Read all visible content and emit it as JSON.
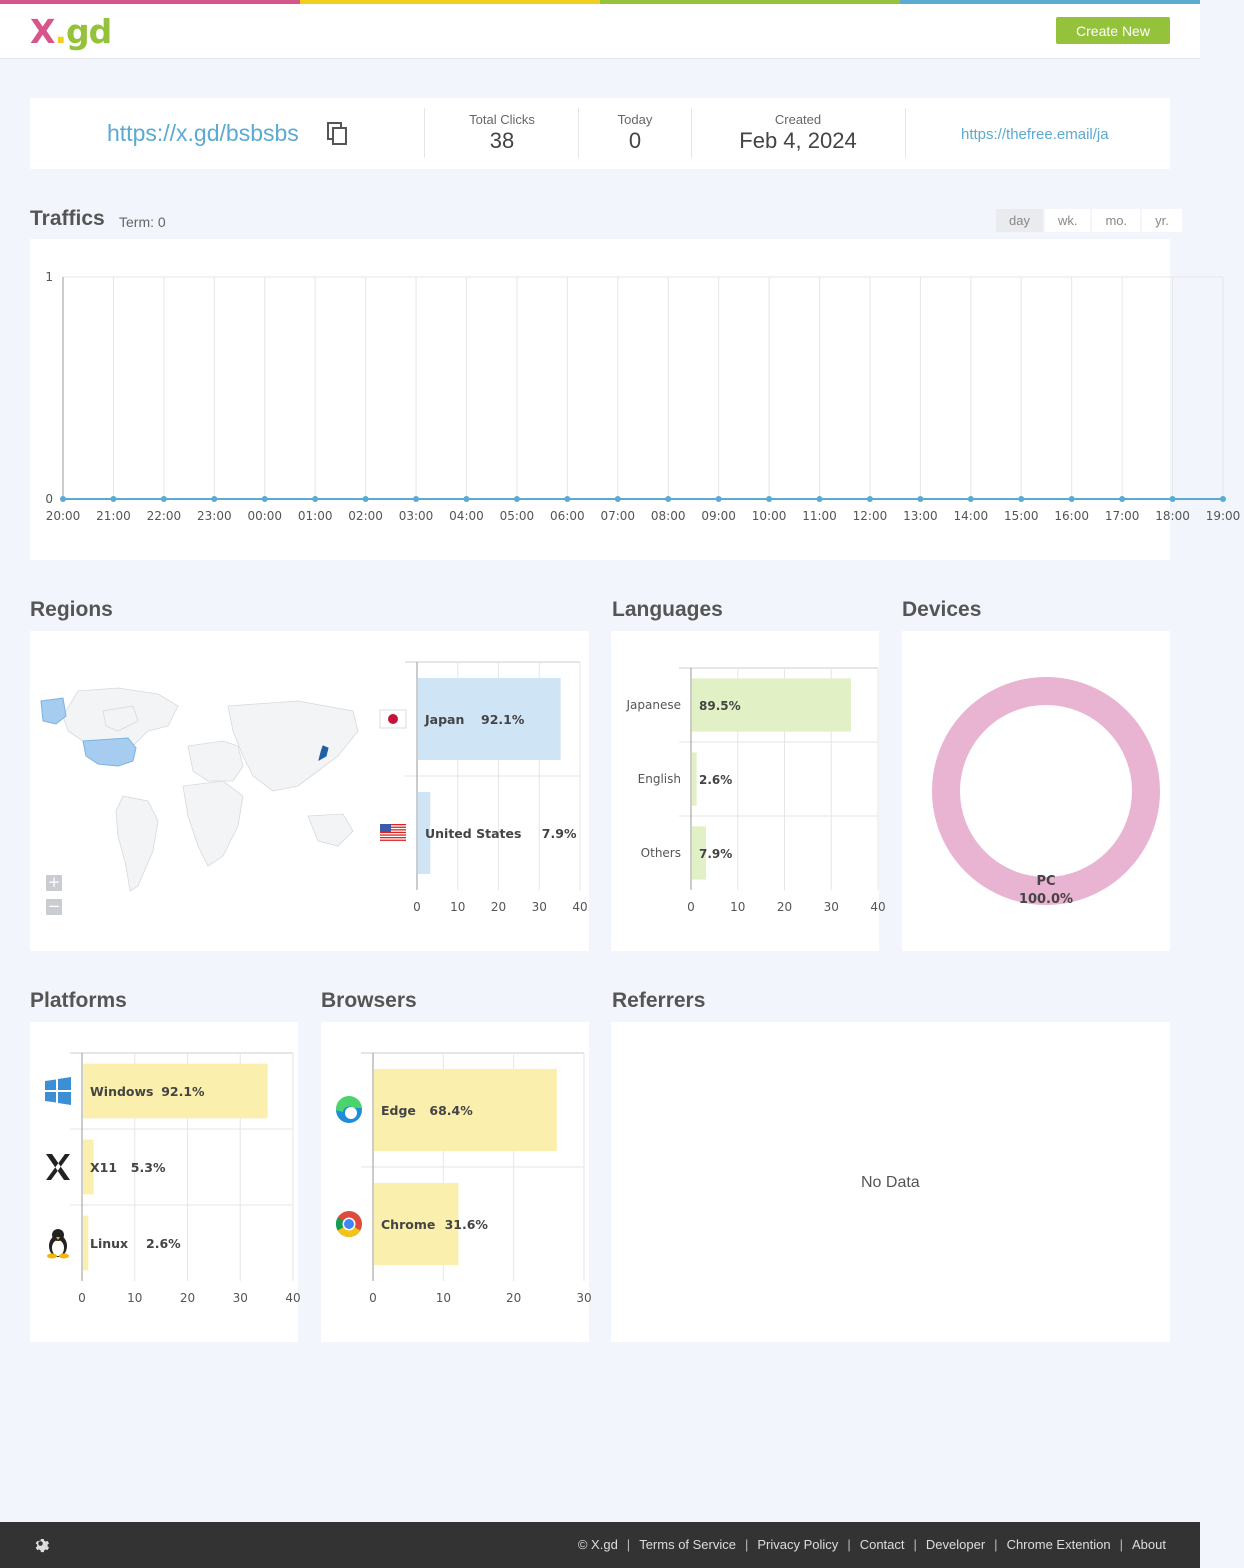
{
  "brand": {
    "logo_x": "X",
    "logo_dot": ".",
    "logo_gd": "gd"
  },
  "colors": {
    "pink": "#d6558a",
    "yellow": "#f0d01e",
    "green": "#94c23a",
    "blue": "#5aaad2"
  },
  "header": {
    "create_label": "Create New"
  },
  "stats": {
    "short_url": "https://x.gd/bsbsbs",
    "total_clicks_label": "Total Clicks",
    "total_clicks": "38",
    "today_label": "Today",
    "today": "0",
    "created_label": "Created",
    "created": "Feb 4, 2024",
    "destination": "https://thefree.email/ja"
  },
  "traffics": {
    "title": "Traffics",
    "term": "Term: 0",
    "tabs": [
      "day",
      "wk.",
      "mo.",
      "yr."
    ],
    "active_tab": "day"
  },
  "sections": {
    "regions": "Regions",
    "languages": "Languages",
    "devices": "Devices",
    "platforms": "Platforms",
    "browsers": "Browsers",
    "referrers": "Referrers"
  },
  "referrers": {
    "empty": "No Data"
  },
  "chart_data": [
    {
      "type": "line",
      "id": "traffic",
      "x": [
        "20:00",
        "21:00",
        "22:00",
        "23:00",
        "00:00",
        "01:00",
        "02:00",
        "03:00",
        "04:00",
        "05:00",
        "06:00",
        "07:00",
        "08:00",
        "09:00",
        "10:00",
        "11:00",
        "12:00",
        "13:00",
        "14:00",
        "15:00",
        "16:00",
        "17:00",
        "18:00",
        "19:00"
      ],
      "values": [
        0,
        0,
        0,
        0,
        0,
        0,
        0,
        0,
        0,
        0,
        0,
        0,
        0,
        0,
        0,
        0,
        0,
        0,
        0,
        0,
        0,
        0,
        0,
        0
      ],
      "ylim": [
        0,
        1
      ],
      "yticks": [
        "0",
        "1"
      ],
      "color": "#5aaad2"
    },
    {
      "type": "bar",
      "id": "regions",
      "orientation": "horizontal",
      "categories": [
        "Japan",
        "United States"
      ],
      "percents": [
        "92.1%",
        "7.9%"
      ],
      "values": [
        35,
        3
      ],
      "xlim": [
        0,
        40
      ],
      "xticks": [
        "0",
        "10",
        "20",
        "30",
        "40"
      ],
      "color": "#cfe4f5",
      "icons": [
        "japan-flag-icon",
        "us-flag-icon"
      ]
    },
    {
      "type": "bar",
      "id": "languages",
      "orientation": "horizontal",
      "categories": [
        "Japanese",
        "English",
        "Others"
      ],
      "percents": [
        "89.5%",
        "2.6%",
        "7.9%"
      ],
      "values": [
        34,
        1,
        3
      ],
      "xlim": [
        0,
        40
      ],
      "xticks": [
        "0",
        "10",
        "20",
        "30",
        "40"
      ],
      "color": "#e2f0c6"
    },
    {
      "type": "pie",
      "id": "devices",
      "categories": [
        "PC"
      ],
      "percents": [
        "100.0%"
      ],
      "values": [
        38
      ],
      "color": "#e9b4d1"
    },
    {
      "type": "bar",
      "id": "platforms",
      "orientation": "horizontal",
      "categories": [
        "Windows",
        "X11",
        "Linux"
      ],
      "percents": [
        "92.1%",
        "5.3%",
        "2.6%"
      ],
      "values": [
        35,
        2,
        1
      ],
      "xlim": [
        0,
        40
      ],
      "xticks": [
        "0",
        "10",
        "20",
        "30",
        "40"
      ],
      "color": "#fbefae",
      "icons": [
        "windows-icon",
        "x11-icon",
        "linux-icon"
      ]
    },
    {
      "type": "bar",
      "id": "browsers",
      "orientation": "horizontal",
      "categories": [
        "Edge",
        "Chrome"
      ],
      "percents": [
        "68.4%",
        "31.6%"
      ],
      "values": [
        26,
        12
      ],
      "xlim": [
        0,
        30
      ],
      "xticks": [
        "0",
        "10",
        "20",
        "30"
      ],
      "color": "#fbefae",
      "icons": [
        "edge-icon",
        "chrome-icon"
      ]
    }
  ],
  "footer": {
    "links": [
      "© X.gd",
      "Terms of Service",
      "Privacy Policy",
      "Contact",
      "Developer",
      "Chrome Extention",
      "About"
    ]
  }
}
